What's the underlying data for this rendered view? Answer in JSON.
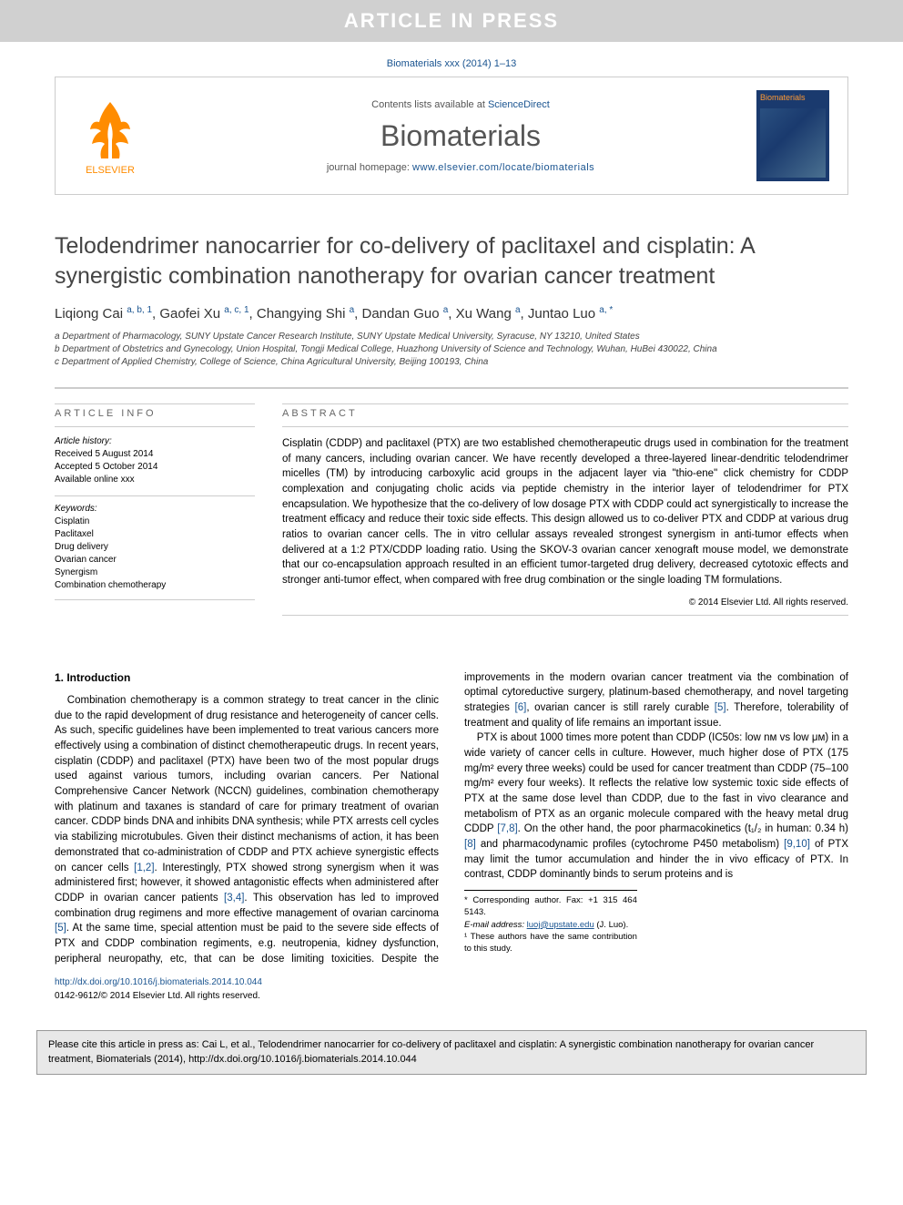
{
  "banner": "ARTICLE IN PRESS",
  "topCitation": "Biomaterials xxx (2014) 1–13",
  "masthead": {
    "contentsPrefix": "Contents lists available at ",
    "contentsLink": "ScienceDirect",
    "journalName": "Biomaterials",
    "homepagePrefix": "journal homepage: ",
    "homepageUrl": "www.elsevier.com/locate/biomaterials",
    "logoText": "ELSEVIER",
    "coverTitle": "Biomaterials"
  },
  "title": "Telodendrimer nanocarrier for co-delivery of paclitaxel and cisplatin: A synergistic combination nanotherapy for ovarian cancer treatment",
  "authors": [
    {
      "name": "Liqiong Cai",
      "sup": "a, b, 1"
    },
    {
      "name": "Gaofei Xu",
      "sup": "a, c, 1"
    },
    {
      "name": "Changying Shi",
      "sup": "a"
    },
    {
      "name": "Dandan Guo",
      "sup": "a"
    },
    {
      "name": "Xu Wang",
      "sup": "a"
    },
    {
      "name": "Juntao Luo",
      "sup": "a, *"
    }
  ],
  "affiliations": [
    "a Department of Pharmacology, SUNY Upstate Cancer Research Institute, SUNY Upstate Medical University, Syracuse, NY 13210, United States",
    "b Department of Obstetrics and Gynecology, Union Hospital, Tongji Medical College, Huazhong University of Science and Technology, Wuhan, HuBei 430022, China",
    "c Department of Applied Chemistry, College of Science, China Agricultural University, Beijing 100193, China"
  ],
  "infoHead": "ARTICLE INFO",
  "history": {
    "label": "Article history:",
    "items": [
      "Received 5 August 2014",
      "Accepted 5 October 2014",
      "Available online xxx"
    ]
  },
  "keywordsLabel": "Keywords:",
  "keywords": [
    "Cisplatin",
    "Paclitaxel",
    "Drug delivery",
    "Ovarian cancer",
    "Synergism",
    "Combination chemotherapy"
  ],
  "abstractHead": "ABSTRACT",
  "abstractText": "Cisplatin (CDDP) and paclitaxel (PTX) are two established chemotherapeutic drugs used in combination for the treatment of many cancers, including ovarian cancer. We have recently developed a three-layered linear-dendritic telodendrimer micelles (TM) by introducing carboxylic acid groups in the adjacent layer via \"thio-ene\" click chemistry for CDDP complexation and conjugating cholic acids via peptide chemistry in the interior layer of telodendrimer for PTX encapsulation. We hypothesize that the co-delivery of low dosage PTX with CDDP could act synergistically to increase the treatment efficacy and reduce their toxic side effects. This design allowed us to co-deliver PTX and CDDP at various drug ratios to ovarian cancer cells. The in vitro cellular assays revealed strongest synergism in anti-tumor effects when delivered at a 1:2 PTX/CDDP loading ratio. Using the SKOV-3 ovarian cancer xenograft mouse model, we demonstrate that our co-encapsulation approach resulted in an efficient tumor-targeted drug delivery, decreased cytotoxic effects and stronger anti-tumor effect, when compared with free drug combination or the single loading TM formulations.",
  "copyright": "© 2014 Elsevier Ltd. All rights reserved.",
  "sectionHead": "1. Introduction",
  "col1p1": "Combination chemotherapy is a common strategy to treat cancer in the clinic due to the rapid development of drug resistance and heterogeneity of cancer cells. As such, specific guidelines have been implemented to treat various cancers more effectively using a combination of distinct chemotherapeutic drugs. In recent years, cisplatin (CDDP) and paclitaxel (PTX) have been two of the most popular drugs used against various tumors, including ovarian cancers. Per National Comprehensive Cancer Network (NCCN) guidelines, combination chemotherapy with platinum and taxanes is standard of care for primary treatment of ovarian cancer. CDDP binds DNA and inhibits DNA synthesis; while PTX arrests cell cycles via stabilizing microtubules. Given their distinct mechanisms of action, it has been demonstrated that co-administration of CDDP and PTX achieve synergistic effects on cancer cells ",
  "col1ref1": "[1,2]",
  "col1p1b": ". Interestingly, PTX showed strong synergism when it was administered first; however, it showed antagonistic effects when administered",
  "col2p1a": "after CDDP in ovarian cancer patients ",
  "col2ref1": "[3,4]",
  "col2p1b": ". This observation has led to improved combination drug regimens and more effective management of ovarian carcinoma ",
  "col2ref2": "[5]",
  "col2p1c": ". At the same time, special attention must be paid to the severe side effects of PTX and CDDP combination regiments, e.g. neutropenia, kidney dysfunction, peripheral neuropathy, etc, that can be dose limiting toxicities. Despite the improvements in the modern ovarian cancer treatment via the combination of optimal cytoreductive surgery, platinum-based chemotherapy, and novel targeting strategies ",
  "col2ref3": "[6]",
  "col2p1d": ", ovarian cancer is still rarely curable ",
  "col2ref4": "[5]",
  "col2p1e": ". Therefore, tolerability of treatment and quality of life remains an important issue.",
  "col2p2a": "PTX is about 1000 times more potent than CDDP (IC50s: low nᴍ vs low μᴍ) in a wide variety of cancer cells in culture. However, much higher dose of PTX (175 mg/m² every three weeks) could be used for cancer treatment than CDDP (75–100 mg/m² every four weeks). It reflects the relative low systemic toxic side effects of PTX at the same dose level than CDDP, due to the fast in vivo clearance and metabolism of PTX as an organic molecule compared with the heavy metal drug CDDP ",
  "col2ref5": "[7,8]",
  "col2p2b": ". On the other hand, the poor pharmacokinetics (t₁/₂ in human: 0.34 h) ",
  "col2ref6": "[8]",
  "col2p2c": " and pharmacodynamic profiles (cytochrome P450 metabolism) ",
  "col2ref7": "[9,10]",
  "col2p2d": " of PTX may limit the tumor accumulation and hinder the in vivo efficacy of PTX. In contrast, CDDP dominantly binds to serum proteins and is",
  "footnotes": {
    "corresponding": "* Corresponding author. Fax: +1 315 464 5143.",
    "emailLabel": "E-mail address: ",
    "email": "luoj@upstate.edu",
    "emailSuffix": " (J. Luo).",
    "contrib": "¹ These authors have the same contribution to this study."
  },
  "doi": {
    "url": "http://dx.doi.org/10.1016/j.biomaterials.2014.10.044",
    "copyright": "0142-9612/© 2014 Elsevier Ltd. All rights reserved."
  },
  "citeBox": "Please cite this article in press as: Cai L, et al., Telodendrimer nanocarrier for co-delivery of paclitaxel and cisplatin: A synergistic combination nanotherapy for ovarian cancer treatment, Biomaterials (2014), http://dx.doi.org/10.1016/j.biomaterials.2014.10.044",
  "colors": {
    "bannerBg": "#d0d0d0",
    "bannerText": "#ffffff",
    "link": "#1a5490",
    "elsevierOrange": "#ff8c00",
    "coverBg": "#1a3a6e",
    "coverTitle": "#ff9933",
    "citeBoxBg": "#e8e8e8"
  }
}
